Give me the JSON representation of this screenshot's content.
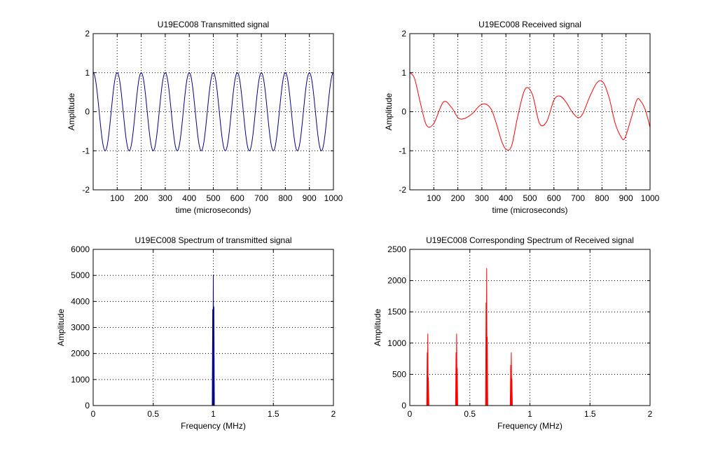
{
  "chart_data": [
    {
      "type": "line",
      "title": "U19EC008 Transmitted signal",
      "xlabel": "time (microseconds)",
      "ylabel": "Amplitude",
      "xlim": [
        0,
        1000
      ],
      "ylim": [
        -2,
        2
      ],
      "xticks": [
        100,
        200,
        300,
        400,
        500,
        600,
        700,
        800,
        900,
        1000
      ],
      "yticks": [
        -2,
        -1,
        0,
        1,
        2
      ],
      "grid": true,
      "series": [
        {
          "color": "#00008b",
          "function": "cos",
          "components": [
            {
              "amplitude": 1,
              "period": 100,
              "phase": 0
            }
          ]
        }
      ]
    },
    {
      "type": "line",
      "title": "U19EC008 Received signal",
      "xlabel": "time (microseconds)",
      "ylabel": "Amplitude",
      "xlim": [
        0,
        1000
      ],
      "ylim": [
        -2,
        2
      ],
      "xticks": [
        100,
        200,
        300,
        400,
        500,
        600,
        700,
        800,
        900,
        1000
      ],
      "yticks": [
        -2,
        -1,
        0,
        1,
        2
      ],
      "grid": true,
      "series": [
        {
          "color": "#ff0000",
          "x": [
            0,
            20,
            45,
            70,
            100,
            140,
            175,
            200,
            225,
            260,
            290,
            315,
            340,
            360,
            385,
            405,
            425,
            450,
            480,
            510,
            540,
            570,
            600,
            625,
            650,
            675,
            700,
            720,
            750,
            780,
            805,
            830,
            855,
            880,
            895,
            920,
            945,
            960,
            980,
            1000
          ],
          "y": [
            1.0,
            0.85,
            0.2,
            -0.35,
            -0.3,
            0.25,
            0.1,
            -0.15,
            -0.18,
            -0.05,
            0.15,
            0.2,
            0.05,
            -0.3,
            -0.8,
            -0.98,
            -0.85,
            -0.1,
            0.58,
            0.45,
            -0.3,
            -0.25,
            0.3,
            0.4,
            0.25,
            0.0,
            -0.15,
            -0.05,
            0.4,
            0.75,
            0.75,
            0.35,
            -0.3,
            -0.65,
            -0.68,
            -0.2,
            0.3,
            0.28,
            0.05,
            -0.4
          ]
        }
      ]
    },
    {
      "type": "line",
      "title": "U19EC008 Spectrum of transmitted signal",
      "xlabel": "Frequency (MHz)",
      "ylabel": "Amplitude",
      "xlim": [
        0,
        2
      ],
      "ylim": [
        0,
        6000
      ],
      "xticks": [
        0,
        0.5,
        1,
        1.5,
        2
      ],
      "yticks": [
        0,
        1000,
        2000,
        3000,
        4000,
        5000,
        6000
      ],
      "grid": true,
      "series": [
        {
          "color": "#00008b",
          "peaks": [
            {
              "x": 0.995,
              "y": 3700
            },
            {
              "x": 1.0,
              "y": 5000
            },
            {
              "x": 1.005,
              "y": 3800
            }
          ]
        }
      ]
    },
    {
      "type": "line",
      "title": "U19EC008 Corresponding Spectrum of Received signal",
      "xlabel": "Frequency (MHz)",
      "ylabel": "Amplitude",
      "xlim": [
        0,
        2
      ],
      "ylim": [
        0,
        2500
      ],
      "xticks": [
        0,
        0.5,
        1,
        1.5,
        2
      ],
      "yticks": [
        0,
        500,
        1000,
        1500,
        2000,
        2500
      ],
      "grid": true,
      "series": [
        {
          "color": "#ff0000",
          "peaks": [
            {
              "x": 0.145,
              "y": 850
            },
            {
              "x": 0.15,
              "y": 1150
            },
            {
              "x": 0.155,
              "y": 450
            },
            {
              "x": 0.385,
              "y": 850
            },
            {
              "x": 0.39,
              "y": 1150
            },
            {
              "x": 0.395,
              "y": 600
            },
            {
              "x": 0.635,
              "y": 1650
            },
            {
              "x": 0.64,
              "y": 2200
            },
            {
              "x": 0.645,
              "y": 1100
            },
            {
              "x": 0.84,
              "y": 650
            },
            {
              "x": 0.845,
              "y": 850
            },
            {
              "x": 0.85,
              "y": 430
            }
          ]
        }
      ]
    }
  ]
}
